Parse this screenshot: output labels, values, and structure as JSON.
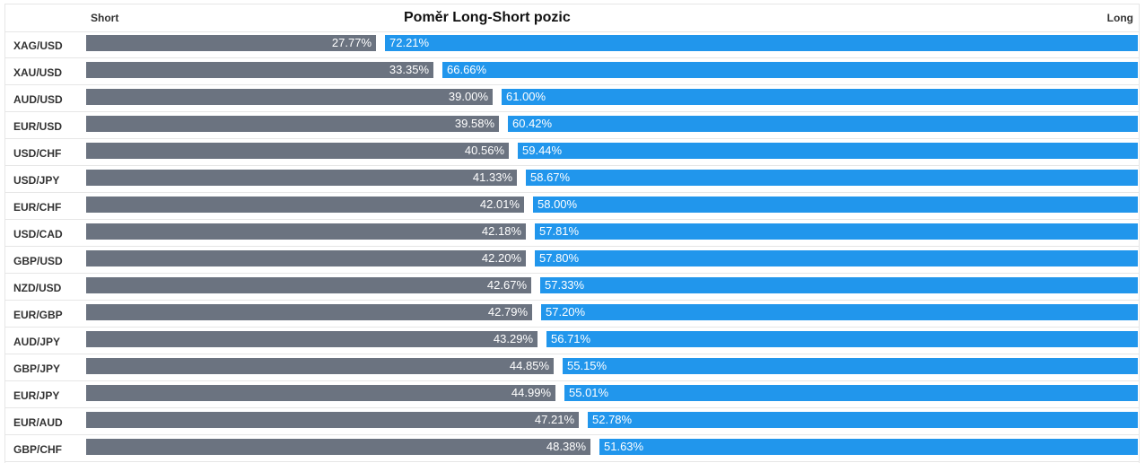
{
  "header": {
    "title": "Poměr Long-Short pozic",
    "short_label": "Short",
    "long_label": "Long"
  },
  "colors": {
    "short": "#6b7380",
    "long": "#2196ec"
  },
  "chart_data": {
    "type": "bar",
    "orientation": "horizontal-stacked",
    "title": "Poměr Long-Short pozic",
    "categories": [
      "XAG/USD",
      "XAU/USD",
      "AUD/USD",
      "EUR/USD",
      "USD/CHF",
      "USD/JPY",
      "EUR/CHF",
      "USD/CAD",
      "GBP/USD",
      "NZD/USD",
      "EUR/GBP",
      "AUD/JPY",
      "GBP/JPY",
      "EUR/JPY",
      "EUR/AUD",
      "GBP/CHF"
    ],
    "series": [
      {
        "name": "Short",
        "values": [
          27.77,
          33.35,
          39.0,
          39.58,
          40.56,
          41.33,
          42.01,
          42.18,
          42.2,
          42.67,
          42.79,
          43.29,
          44.85,
          44.99,
          47.21,
          48.38
        ]
      },
      {
        "name": "Long",
        "values": [
          72.21,
          66.66,
          61.0,
          60.42,
          59.44,
          58.67,
          58.0,
          57.81,
          57.8,
          57.33,
          57.2,
          56.71,
          55.15,
          55.01,
          52.78,
          51.63
        ]
      }
    ],
    "short_text": [
      "27.77%",
      "33.35%",
      "39.00%",
      "39.58%",
      "40.56%",
      "41.33%",
      "42.01%",
      "42.18%",
      "42.20%",
      "42.67%",
      "42.79%",
      "43.29%",
      "44.85%",
      "44.99%",
      "47.21%",
      "48.38%"
    ],
    "long_text": [
      "72.21%",
      "66.66%",
      "61.00%",
      "60.42%",
      "59.44%",
      "58.67%",
      "58.00%",
      "57.81%",
      "57.80%",
      "57.33%",
      "57.20%",
      "56.71%",
      "55.15%",
      "55.01%",
      "52.78%",
      "51.63%"
    ],
    "xlim": [
      0,
      100
    ]
  }
}
